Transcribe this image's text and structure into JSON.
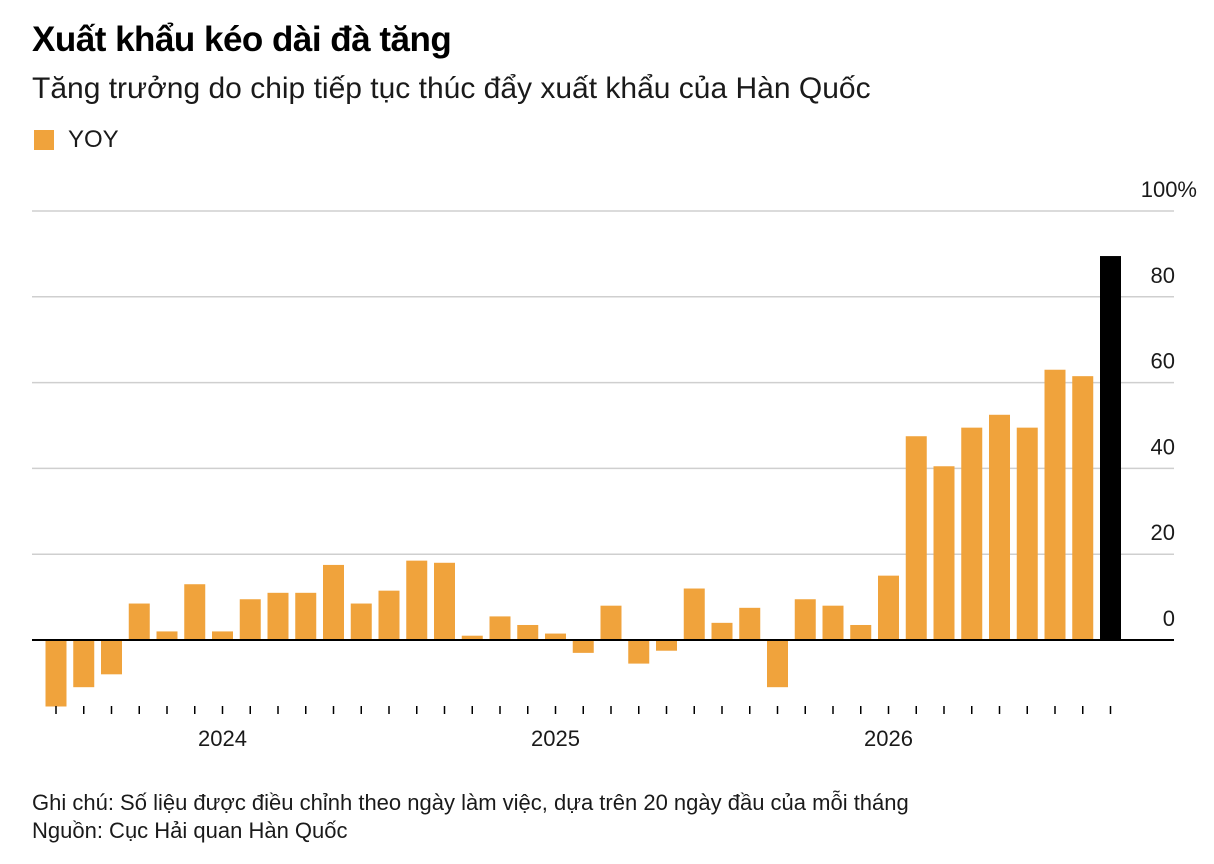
{
  "header": {
    "title": "Xuất khẩu kéo dài đà tăng",
    "subtitle": "Tăng trưởng do chip tiếp tục thúc đẩy xuất khẩu của Hàn Quốc"
  },
  "legend": {
    "label": "YOY",
    "color": "#F0A33C"
  },
  "footer": {
    "note": "Ghi chú: Số liệu được điều chỉnh theo ngày làm việc, dựa trên 20 ngày đầu của mỗi tháng",
    "source": "Nguồn: Cục Hải quan Hàn Quốc"
  },
  "chart_data": {
    "type": "bar",
    "series": [
      {
        "name": "YOY",
        "color": "#F0A33C",
        "highlight_color": "#000000",
        "highlight_last": true,
        "values": [
          -15.5,
          -11,
          -8,
          8.5,
          2,
          13,
          2,
          9.5,
          11,
          11,
          17.5,
          8.5,
          11.5,
          18.5,
          18,
          1,
          5.5,
          3.5,
          1.5,
          -3,
          8,
          -5.5,
          -2.5,
          12,
          4,
          7.5,
          -11,
          9.5,
          8,
          3.5,
          15,
          47.5,
          40.5,
          49.5,
          52.5,
          49.5,
          63,
          61.5,
          89.5
        ]
      }
    ],
    "x_labels": [
      {
        "text": "2024",
        "index": 6
      },
      {
        "text": "2025",
        "index": 18
      },
      {
        "text": "2026",
        "index": 30
      }
    ],
    "y_ticks": [
      "100%",
      "80",
      "60",
      "40",
      "20",
      "0"
    ],
    "y_tick_values": [
      100,
      80,
      60,
      40,
      20,
      0
    ],
    "ylim": [
      -16,
      100
    ],
    "grid": true,
    "axis_position": "right",
    "legend_position": "top-left",
    "xlabel": "",
    "ylabel": ""
  }
}
